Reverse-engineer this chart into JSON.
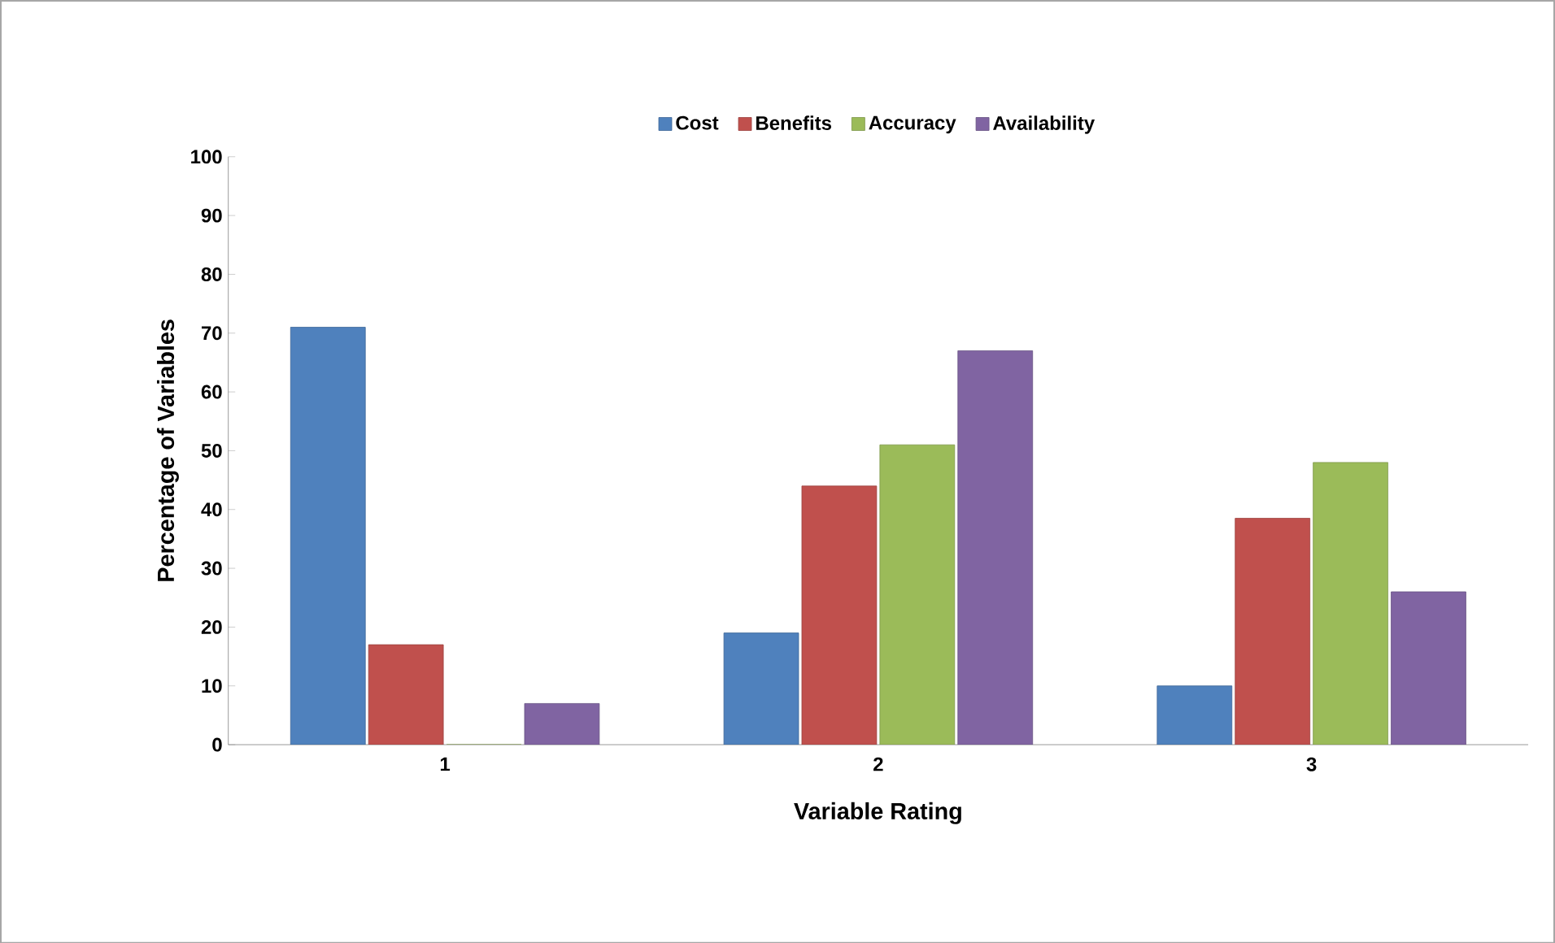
{
  "chart_data": {
    "type": "bar",
    "xlabel": "Variable Rating",
    "ylabel": "Percentage of Variables",
    "categories": [
      "1",
      "2",
      "3"
    ],
    "series": [
      {
        "name": "Cost",
        "color": "#4f81bd",
        "values": [
          71,
          19,
          10
        ]
      },
      {
        "name": "Benefits",
        "color": "#c0504d",
        "values": [
          17,
          44,
          38.5
        ]
      },
      {
        "name": "Accuracy",
        "color": "#9bbb59",
        "values": [
          0,
          51,
          48
        ]
      },
      {
        "name": "Availability",
        "color": "#8064a2",
        "values": [
          7,
          67,
          26
        ]
      }
    ],
    "ylim": [
      0,
      100
    ],
    "yticks": [
      0,
      10,
      20,
      30,
      40,
      50,
      60,
      70,
      80,
      90,
      100
    ],
    "grid": false,
    "legend": "top"
  }
}
